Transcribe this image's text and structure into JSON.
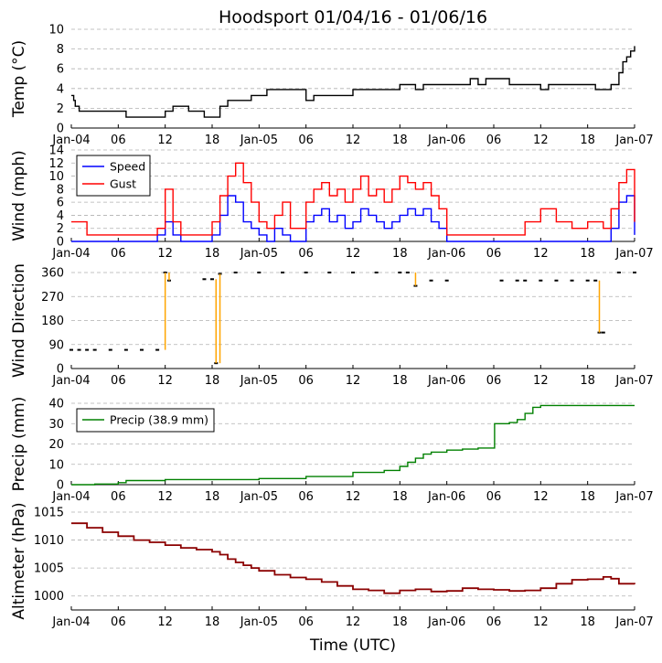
{
  "title": "Hoodsport 01/04/16 - 01/06/16",
  "xlabel": "Time (UTC)",
  "x_tick_labels": [
    "Jan-04",
    "06",
    "12",
    "18",
    "Jan-05",
    "06",
    "12",
    "18",
    "Jan-06",
    "06",
    "12",
    "18",
    "Jan-07"
  ],
  "colors": {
    "temp": "#000000",
    "speed": "#0000ff",
    "gust": "#ff0000",
    "direction": "#ffa500",
    "precip": "#008000",
    "altimeter": "#8b0000",
    "grid": "#b0b0b0"
  },
  "chart_data": [
    {
      "type": "line",
      "name": "temp",
      "ylabel": "Temp (°C)",
      "ylim": [
        0,
        10
      ],
      "yticks": [
        0,
        2,
        4,
        6,
        8,
        10
      ],
      "xlim": [
        0,
        72
      ],
      "series": [
        {
          "name": "Temp",
          "x": [
            0,
            0.3,
            0.5,
            1,
            3,
            3.5,
            7,
            9,
            10,
            12,
            13,
            14,
            15,
            17,
            19,
            20,
            21,
            23,
            24,
            25,
            26,
            27,
            29,
            30,
            31,
            32,
            33,
            36,
            37,
            38,
            40,
            42,
            44,
            45,
            46,
            47,
            49,
            50,
            51,
            52,
            53,
            55,
            56,
            57,
            58,
            59,
            60,
            61,
            62,
            63,
            64,
            65,
            66,
            67,
            68,
            69,
            70,
            70.5,
            71,
            71.5,
            72
          ],
          "y": [
            3.3,
            2.8,
            2.2,
            1.7,
            1.7,
            1.7,
            1.1,
            1.1,
            1.1,
            1.7,
            2.2,
            2.2,
            1.7,
            1.1,
            2.2,
            2.8,
            2.8,
            3.3,
            3.3,
            3.9,
            3.9,
            3.9,
            3.9,
            2.8,
            3.3,
            3.3,
            3.3,
            3.9,
            3.9,
            3.9,
            3.9,
            4.4,
            3.9,
            4.4,
            4.4,
            4.4,
            4.4,
            4.4,
            5.0,
            4.4,
            5.0,
            5.0,
            4.4,
            4.4,
            4.4,
            4.4,
            3.9,
            4.4,
            4.4,
            4.4,
            4.4,
            4.4,
            4.4,
            3.9,
            3.9,
            4.4,
            5.6,
            6.7,
            7.2,
            7.8,
            8.3
          ]
        }
      ]
    },
    {
      "type": "line",
      "name": "wind",
      "ylabel": "Wind (mph)",
      "ylim": [
        0,
        14
      ],
      "yticks": [
        0,
        2,
        4,
        6,
        8,
        10,
        12,
        14
      ],
      "xlim": [
        0,
        72
      ],
      "legend": "top-left",
      "series": [
        {
          "name": "Speed",
          "x": [
            0,
            2,
            4,
            6,
            8,
            10,
            11,
            12,
            13,
            14,
            15,
            16,
            17,
            18,
            19,
            20,
            21,
            22,
            23,
            24,
            25,
            26,
            27,
            28,
            29,
            30,
            31,
            32,
            33,
            34,
            35,
            36,
            37,
            38,
            39,
            40,
            41,
            42,
            43,
            44,
            45,
            46,
            47,
            48,
            50,
            52,
            54,
            56,
            58,
            60,
            62,
            64,
            66,
            68,
            69,
            70,
            71,
            72
          ],
          "y": [
            0,
            0,
            0,
            0,
            0,
            0,
            1,
            3,
            1,
            0,
            0,
            0,
            0,
            1,
            4,
            7,
            6,
            3,
            2,
            1,
            0,
            2,
            1,
            0,
            0,
            3,
            4,
            5,
            3,
            4,
            2,
            3,
            5,
            4,
            3,
            2,
            3,
            4,
            5,
            4,
            5,
            3,
            2,
            0,
            0,
            0,
            0,
            0,
            0,
            0,
            0,
            0,
            0,
            0,
            2,
            6,
            7,
            1
          ]
        },
        {
          "name": "Gust",
          "x": [
            0,
            2,
            4,
            6,
            8,
            10,
            11,
            12,
            13,
            14,
            15,
            16,
            17,
            18,
            19,
            20,
            21,
            22,
            23,
            24,
            25,
            26,
            27,
            28,
            29,
            30,
            31,
            32,
            33,
            34,
            35,
            36,
            37,
            38,
            39,
            40,
            41,
            42,
            43,
            44,
            45,
            46,
            47,
            48,
            50,
            52,
            54,
            56,
            58,
            60,
            62,
            64,
            66,
            68,
            69,
            70,
            71,
            72
          ],
          "y": [
            3,
            1,
            1,
            1,
            1,
            1,
            2,
            8,
            3,
            1,
            1,
            1,
            1,
            3,
            7,
            10,
            12,
            9,
            6,
            3,
            2,
            4,
            6,
            2,
            2,
            6,
            8,
            9,
            7,
            8,
            6,
            8,
            10,
            7,
            8,
            6,
            8,
            10,
            9,
            8,
            9,
            7,
            5,
            1,
            1,
            1,
            1,
            1,
            3,
            5,
            3,
            2,
            3,
            2,
            5,
            9,
            11,
            3
          ]
        }
      ]
    },
    {
      "type": "scatter",
      "name": "direction",
      "ylabel": "Wind Direction",
      "ylim": [
        0,
        360
      ],
      "yticks": [
        0,
        90,
        180,
        270,
        360
      ],
      "xlim": [
        0,
        72
      ],
      "series": [
        {
          "name": "Direction",
          "x": [
            0,
            1,
            2,
            3,
            5,
            7,
            9,
            11,
            12,
            12.5,
            17,
            18,
            18.5,
            19,
            21,
            24,
            27,
            30,
            33,
            36,
            39,
            42,
            43,
            44,
            46,
            48,
            55,
            57,
            58,
            60,
            62,
            64,
            66,
            67,
            67.5,
            68,
            70,
            72
          ],
          "y": [
            70,
            70,
            70,
            70,
            70,
            70,
            70,
            70,
            360,
            330,
            335,
            335,
            20,
            355,
            360,
            360,
            360,
            360,
            360,
            360,
            360,
            360,
            360,
            310,
            330,
            330,
            330,
            330,
            330,
            330,
            330,
            330,
            330,
            330,
            135,
            135,
            360,
            360
          ]
        }
      ]
    },
    {
      "type": "line",
      "name": "precip",
      "ylabel": "Precip (mm)",
      "ylim": [
        0,
        40
      ],
      "yticks": [
        0,
        10,
        20,
        30,
        40
      ],
      "xlim": [
        0,
        72
      ],
      "legend": "top-left",
      "series": [
        {
          "name": "Precip (38.9 mm)",
          "x": [
            0,
            3,
            6,
            7,
            12,
            18,
            24,
            28,
            30,
            36,
            38,
            40,
            42,
            43,
            44,
            45,
            46,
            48,
            50,
            52,
            54,
            54.1,
            56,
            57,
            58,
            59,
            60,
            72
          ],
          "y": [
            0,
            0.3,
            1,
            2,
            2.5,
            2.5,
            3,
            3,
            4,
            6,
            6,
            7,
            9,
            11,
            13,
            15,
            16,
            17,
            17.5,
            18,
            18,
            30,
            30.5,
            32,
            35,
            38,
            38.9,
            38.9
          ]
        }
      ]
    },
    {
      "type": "line",
      "name": "altimeter",
      "ylabel": "Altimeter (hPa)",
      "ylim": [
        997.5,
        1015
      ],
      "yticks": [
        1000,
        1005,
        1010,
        1015
      ],
      "xlim": [
        0,
        72
      ],
      "series": [
        {
          "name": "Altimeter",
          "x": [
            0,
            2,
            4,
            6,
            8,
            10,
            12,
            14,
            16,
            18,
            19,
            20,
            21,
            22,
            23,
            24,
            26,
            28,
            30,
            32,
            34,
            36,
            38,
            40,
            42,
            44,
            46,
            48,
            50,
            52,
            54,
            56,
            58,
            60,
            62,
            64,
            66,
            68,
            69,
            70,
            72
          ],
          "y": [
            1013,
            1012.2,
            1011.4,
            1010.7,
            1010,
            1009.6,
            1009.1,
            1008.6,
            1008.3,
            1007.9,
            1007.4,
            1006.6,
            1006,
            1005.5,
            1005,
            1004.5,
            1003.8,
            1003.3,
            1003,
            1002.5,
            1001.8,
            1001.2,
            1001,
            1000.5,
            1001,
            1001.2,
            1000.8,
            1000.9,
            1001.4,
            1001.2,
            1001.1,
            1000.9,
            1001,
            1001.4,
            1002.2,
            1002.9,
            1003,
            1003.4,
            1003.1,
            1002.2,
            1002.1
          ]
        }
      ]
    }
  ]
}
